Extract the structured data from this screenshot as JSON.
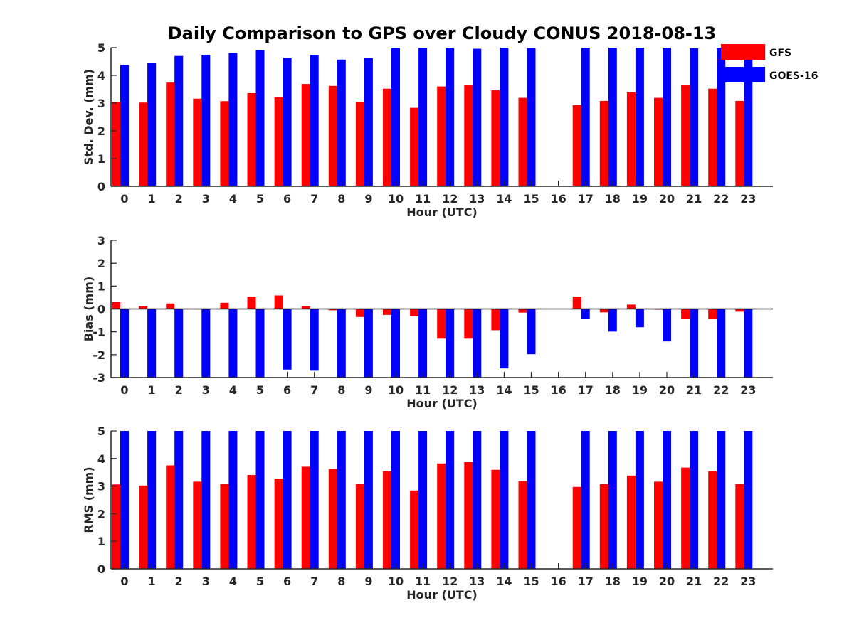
{
  "title": "Daily Comparison to GPS over Cloudy CONUS 2018-08-13",
  "colors": {
    "GFS": "#ff0000",
    "GOES-16": "#0000ff",
    "axis": "#262626"
  },
  "legend": {
    "placement": "top-right",
    "items": [
      "GFS",
      "GOES-16"
    ]
  },
  "chart_data": [
    {
      "type": "bar",
      "title": "Daily Comparison to GPS over Cloudy CONUS 2018-08-13",
      "xlabel": "Hour (UTC)",
      "ylabel": "Std. Dev. (mm)",
      "ylim": [
        0,
        5
      ],
      "yticks": [
        0,
        1,
        2,
        3,
        4,
        5
      ],
      "categories": [
        "0",
        "1",
        "2",
        "3",
        "4",
        "5",
        "6",
        "7",
        "8",
        "9",
        "10",
        "11",
        "12",
        "13",
        "14",
        "15",
        "16",
        "17",
        "18",
        "19",
        "20",
        "21",
        "22",
        "23"
      ],
      "series": [
        {
          "name": "GFS",
          "values": [
            3.05,
            3.02,
            3.74,
            3.16,
            3.07,
            3.36,
            3.21,
            3.69,
            3.62,
            3.05,
            3.52,
            2.83,
            3.6,
            3.64,
            3.46,
            3.19,
            null,
            2.93,
            3.08,
            3.39,
            3.19,
            3.64,
            3.52,
            3.08
          ]
        },
        {
          "name": "GOES-16",
          "values": [
            4.38,
            4.46,
            4.7,
            4.74,
            4.81,
            4.91,
            4.63,
            4.74,
            4.57,
            4.63,
            5.0,
            5.0,
            5.0,
            4.96,
            5.0,
            4.98,
            null,
            5.0,
            5.0,
            5.0,
            5.0,
            4.98,
            5.0,
            4.7
          ]
        }
      ]
    },
    {
      "type": "bar",
      "xlabel": "Hour (UTC)",
      "ylabel": "Bias (mm)",
      "ylim": [
        -3,
        3
      ],
      "yticks": [
        -3,
        -2,
        -1,
        0,
        1,
        2,
        3
      ],
      "categories": [
        "0",
        "1",
        "2",
        "3",
        "4",
        "5",
        "6",
        "7",
        "8",
        "9",
        "10",
        "11",
        "12",
        "13",
        "14",
        "15",
        "16",
        "17",
        "18",
        "19",
        "20",
        "21",
        "22",
        "23"
      ],
      "series": [
        {
          "name": "GFS",
          "values": [
            0.3,
            0.12,
            0.24,
            -0.02,
            0.27,
            0.54,
            0.59,
            0.12,
            -0.06,
            -0.35,
            -0.26,
            -0.32,
            -1.3,
            -1.3,
            -0.93,
            -0.16,
            null,
            0.54,
            -0.15,
            0.19,
            -0.03,
            -0.42,
            -0.43,
            -0.12
          ]
        },
        {
          "name": "GOES-16",
          "values": [
            -3.0,
            -3.0,
            -3.0,
            -3.0,
            -3.0,
            -3.0,
            -2.65,
            -2.7,
            -3.0,
            -3.0,
            -3.0,
            -3.0,
            -3.0,
            -3.0,
            -2.6,
            -1.98,
            null,
            -0.42,
            -0.99,
            -0.8,
            -1.42,
            -3.0,
            -3.0,
            -3.0
          ]
        }
      ]
    },
    {
      "type": "bar",
      "xlabel": "Hour (UTC)",
      "ylabel": "RMS (mm)",
      "ylim": [
        0,
        5
      ],
      "yticks": [
        0,
        1,
        2,
        3,
        4,
        5
      ],
      "categories": [
        "0",
        "1",
        "2",
        "3",
        "4",
        "5",
        "6",
        "7",
        "8",
        "9",
        "10",
        "11",
        "12",
        "13",
        "14",
        "15",
        "16",
        "17",
        "18",
        "19",
        "20",
        "21",
        "22",
        "23"
      ],
      "series": [
        {
          "name": "GFS",
          "values": [
            3.06,
            3.02,
            3.75,
            3.16,
            3.08,
            3.4,
            3.27,
            3.7,
            3.62,
            3.07,
            3.54,
            2.84,
            3.82,
            3.87,
            3.59,
            3.18,
            null,
            2.97,
            3.07,
            3.38,
            3.16,
            3.67,
            3.54,
            3.08
          ]
        },
        {
          "name": "GOES-16",
          "values": [
            5.0,
            5.0,
            5.0,
            5.0,
            5.0,
            5.0,
            5.0,
            5.0,
            5.0,
            5.0,
            5.0,
            5.0,
            5.0,
            5.0,
            5.0,
            5.0,
            null,
            5.0,
            5.0,
            5.0,
            5.0,
            5.0,
            5.0,
            5.0
          ]
        }
      ]
    }
  ]
}
